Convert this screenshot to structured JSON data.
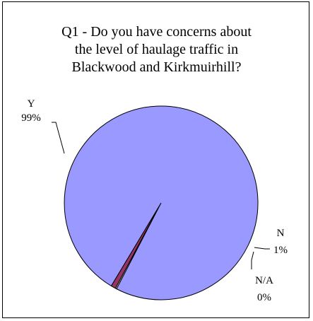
{
  "chart_data": {
    "type": "pie",
    "title": "Q1 - Do you have concerns about\nthe level of haulage traffic in\nBlackwood and Kirkmuirhill?",
    "slices": [
      {
        "label": "Y",
        "percent_label": "99%",
        "value": 99.0,
        "color": "#9999ff"
      },
      {
        "label": "N",
        "percent_label": "1%",
        "value": 0.8,
        "color": "#993366"
      },
      {
        "label": "N/A",
        "percent_label": "0%",
        "value": 0.2,
        "color": "#ffffcc"
      }
    ],
    "legend": "none",
    "start_angle_deg": -121
  }
}
